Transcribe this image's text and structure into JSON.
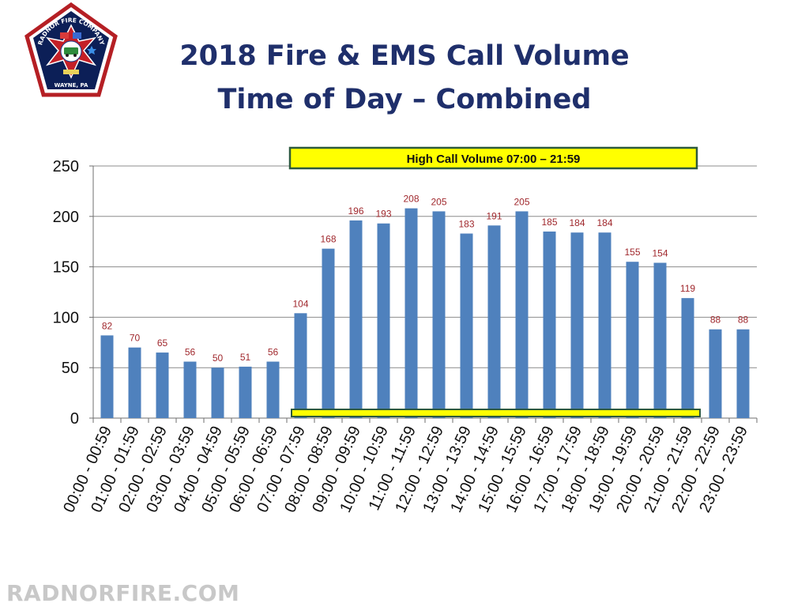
{
  "logo": {
    "top_text": "RADNOR FIRE COMPANY",
    "bottom_text": "WAYNE, PA",
    "colors": {
      "outline": "#b51f24",
      "field": "#0c1f57",
      "cross": "#c42027"
    }
  },
  "header": {
    "title_line1": "2018 Fire & EMS Call Volume",
    "title_line2": "Time of Day – Combined"
  },
  "chart_data": {
    "type": "bar",
    "title": "",
    "xlabel": "",
    "ylabel": "",
    "ylim": [
      0,
      250
    ],
    "yticks": [
      0,
      50,
      100,
      150,
      200,
      250
    ],
    "grid": true,
    "categories": [
      "00:00 - 00:59",
      "01:00 - 01:59",
      "02:00 - 02:59",
      "03:00 - 03:59",
      "04:00 - 04:59",
      "05:00 - 05:59",
      "06:00 - 06:59",
      "07:00 - 07:59",
      "08:00 - 08:59",
      "09:00 - 09:59",
      "10:00 - 10:59",
      "11:00 - 11:59",
      "12:00 - 12:59",
      "13:00 - 13:59",
      "14:00 - 14:59",
      "15:00 - 15:59",
      "16:00 - 16:59",
      "17:00 - 17:59",
      "18:00 - 18:59",
      "19:00 - 19:59",
      "20:00 - 20:59",
      "21:00 - 21:59",
      "22:00 - 22:59",
      "23:00 - 23:59"
    ],
    "values": [
      82,
      70,
      65,
      56,
      50,
      51,
      56,
      104,
      168,
      196,
      193,
      208,
      205,
      183,
      191,
      205,
      185,
      184,
      184,
      155,
      154,
      119,
      88,
      88
    ],
    "annotation": {
      "text": "High Call Volume 07:00 – 21:59",
      "start_category": "07:00 - 07:59",
      "end_category": "21:00 - 21:59"
    },
    "colors": {
      "bar": "#4f81bd",
      "data_label": "#a0282d",
      "grid": "#8c8c8c",
      "highlight_fill": "#ffff00",
      "highlight_border": "#2e5a3c"
    }
  },
  "footer": {
    "text": "RADNORFIRE.COM"
  }
}
